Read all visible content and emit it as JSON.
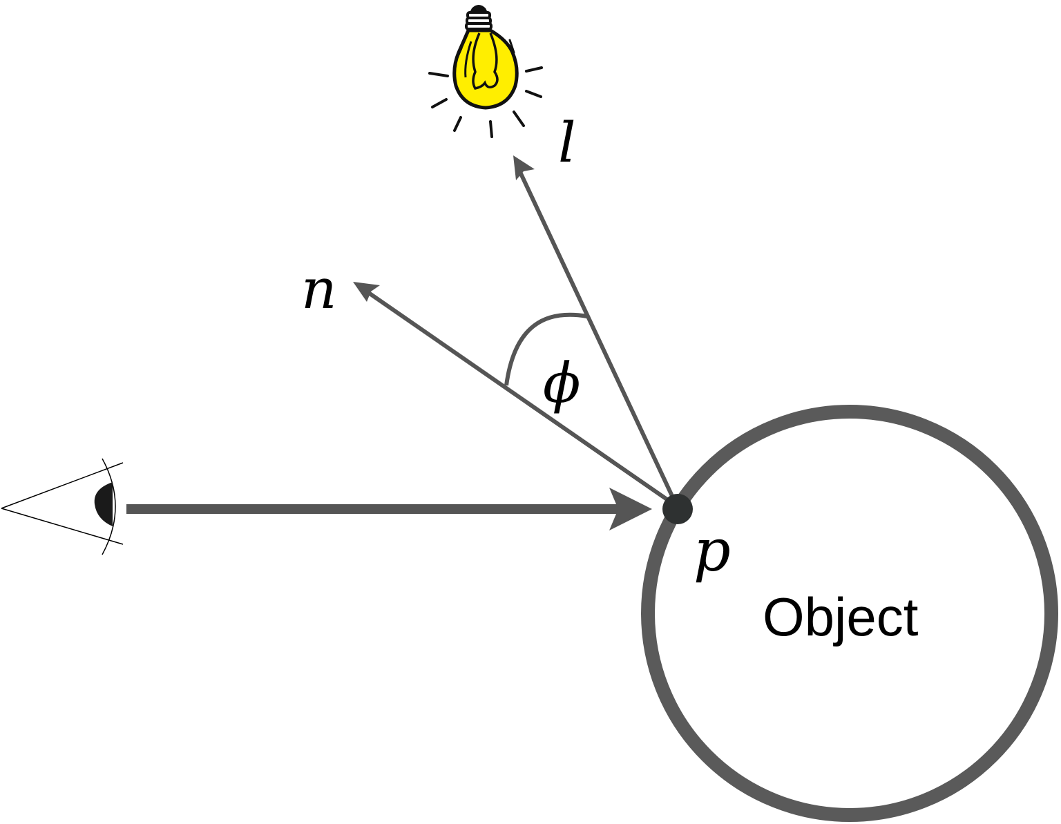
{
  "labels": {
    "light_vector": "l",
    "normal_vector": "n",
    "angle": "ϕ",
    "surface_point": "p",
    "object": "Object"
  },
  "icons": {
    "light": "light-bulb-icon",
    "viewer": "eye-icon"
  },
  "colors": {
    "arrow": "#555555",
    "object_outline": "#5a5a5a",
    "point": "#2e3131",
    "bulb_fill": "#ffee00",
    "ink": "#000000",
    "background": "#ffffff"
  }
}
